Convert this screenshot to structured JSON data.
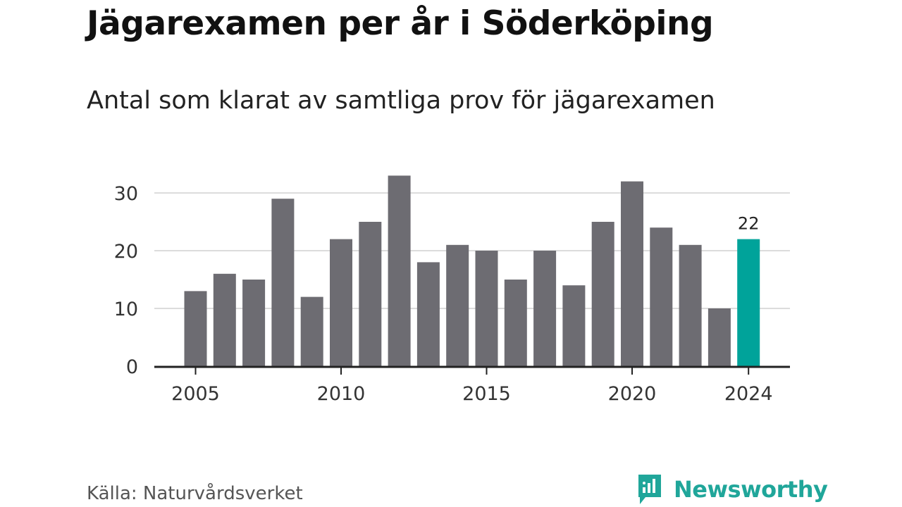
{
  "title": "Jägarexamen per år i Söderköping",
  "subtitle": "Antal som klarat av samtliga prov för jägarexamen",
  "source": "Källa: Naturvårdsverket",
  "brand": {
    "name": "Newsworthy",
    "icon": "newsworthy-logo-icon",
    "color": "#20a69a"
  },
  "chart_data": {
    "type": "bar",
    "categories": [
      2005,
      2006,
      2007,
      2008,
      2009,
      2010,
      2011,
      2012,
      2013,
      2014,
      2015,
      2016,
      2017,
      2018,
      2019,
      2020,
      2021,
      2022,
      2023,
      2024
    ],
    "values": [
      13,
      16,
      15,
      29,
      12,
      22,
      25,
      33,
      18,
      21,
      20,
      15,
      20,
      14,
      25,
      32,
      24,
      21,
      10,
      22
    ],
    "ylim": [
      0,
      35
    ],
    "yticks": [
      0,
      10,
      20,
      30
    ],
    "xticks": [
      2005,
      2010,
      2015,
      2020,
      2024
    ],
    "highlight": {
      "category": 2024,
      "label": "22"
    },
    "colors": {
      "bar": "#6d6c72",
      "highlight": "#00a39a",
      "grid": "#dcdcdc",
      "axis": "#222222"
    },
    "grid": true,
    "xlabel": "",
    "ylabel": ""
  }
}
